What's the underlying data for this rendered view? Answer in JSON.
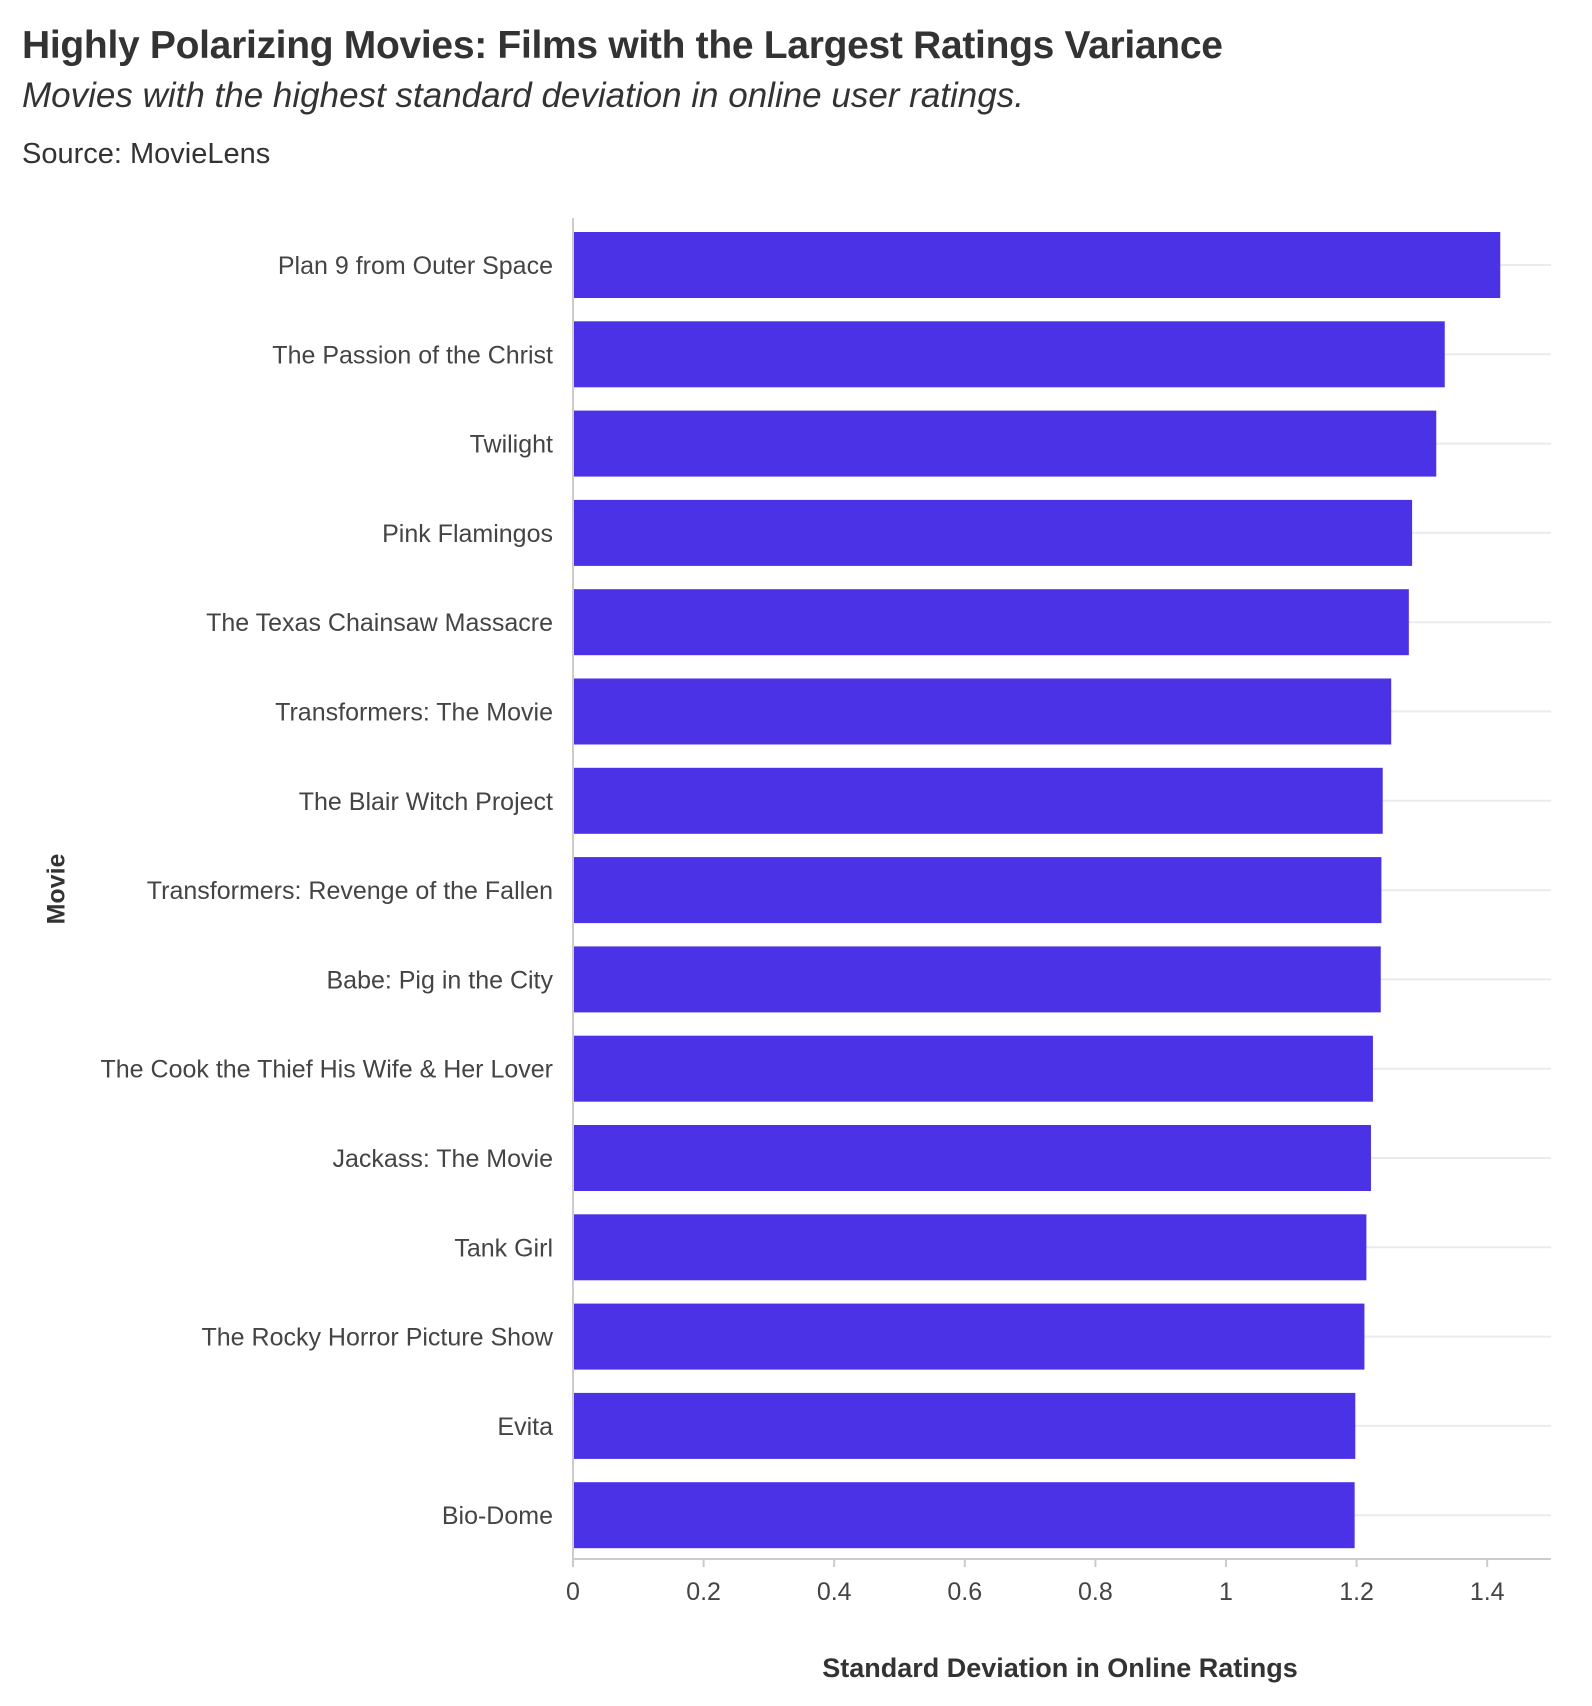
{
  "chart_data": {
    "type": "bar",
    "orientation": "horizontal",
    "title": "Highly Polarizing Movies: Films with the Largest Ratings Variance",
    "subtitle": "Movies with the highest standard deviation in online user ratings.",
    "source": "Source: MovieLens",
    "xlabel": "Standard Deviation in Online Ratings",
    "ylabel": "Movie",
    "xlim": [
      0,
      1.5
    ],
    "xticks": [
      0,
      0.2,
      0.4,
      0.6,
      0.8,
      1,
      1.2,
      1.4
    ],
    "xtick_labels": [
      "0",
      "0.2",
      "0.4",
      "0.6",
      "0.8",
      "1",
      "1.2",
      "1.4"
    ],
    "grid": "horizontal",
    "bar_color": "#4b32e6",
    "categories": [
      "Plan 9 from Outer Space",
      "The Passion of the Christ",
      "Twilight",
      "Pink Flamingos",
      "The Texas Chainsaw Massacre",
      "Transformers: The Movie",
      "The Blair Witch Project",
      "Transformers: Revenge of the Fallen",
      "Babe: Pig in the City",
      "The Cook the Thief His Wife & Her Lover",
      "Jackass: The Movie",
      "Tank Girl",
      "The Rocky Horror Picture Show",
      "Evita",
      "Bio-Dome"
    ],
    "values": [
      1.42,
      1.335,
      1.322,
      1.285,
      1.28,
      1.253,
      1.24,
      1.238,
      1.237,
      1.225,
      1.222,
      1.215,
      1.212,
      1.198,
      1.197
    ]
  }
}
